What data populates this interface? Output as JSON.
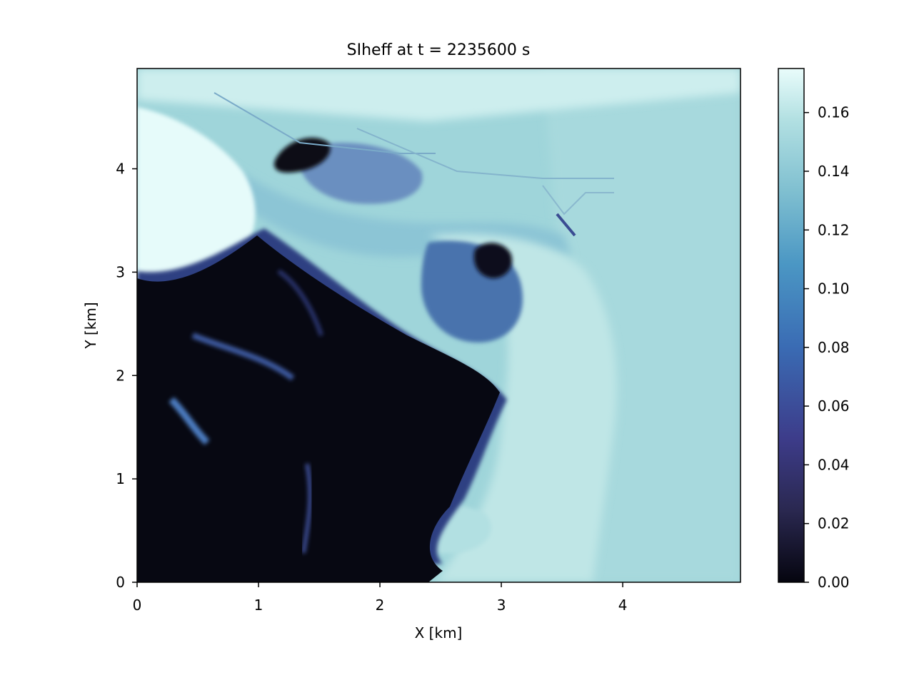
{
  "chart_data": {
    "type": "heatmap",
    "title": "SIheff at t = 2235600 s",
    "xlabel": "X [km]",
    "ylabel": "Y [km]",
    "xlim": [
      0,
      4.97
    ],
    "ylim": [
      0,
      4.97
    ],
    "xticks": [
      "0",
      "1",
      "2",
      "3",
      "4"
    ],
    "yticks": [
      "0",
      "1",
      "2",
      "3",
      "4"
    ],
    "grid": false,
    "colorbar": {
      "vmin": 0.0,
      "vmax": 0.175,
      "ticks": [
        "0.00",
        "0.02",
        "0.04",
        "0.06",
        "0.08",
        "0.10",
        "0.12",
        "0.14",
        "0.16"
      ],
      "colormap": [
        "#05050f",
        "#2a2850",
        "#3d3c8a",
        "#3a6cb4",
        "#4b97c4",
        "#7fbfd0",
        "#b2e0e2",
        "#e9fcfb"
      ]
    },
    "regions": {
      "background": 0.143,
      "upper_left_ice": 0.172,
      "lower_left_open_water": 0.002,
      "central_eddy_band": 0.16,
      "eddy_cores": 0.05,
      "upper_arc": 0.13
    }
  }
}
